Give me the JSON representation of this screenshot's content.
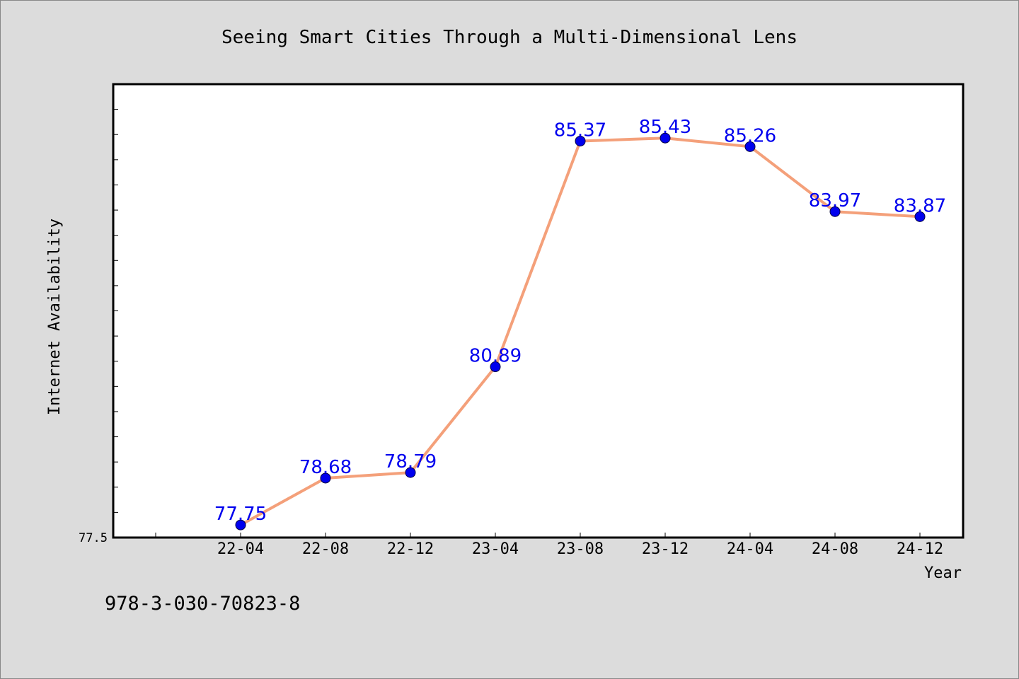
{
  "chart_data": {
    "type": "line",
    "title": "Seeing Smart Cities Through a Multi-Dimensional Lens",
    "xlabel": "Year",
    "ylabel": "Internet Availability",
    "categories": [
      "22-04",
      "22-08",
      "22-12",
      "23-04",
      "23-08",
      "23-12",
      "24-04",
      "24-08",
      "24-12"
    ],
    "series": [
      {
        "values": [
          77.75,
          78.68,
          78.79,
          80.89,
          85.37,
          85.43,
          85.26,
          83.97,
          83.87
        ]
      }
    ],
    "data_labels": [
      "77.75",
      "78.68",
      "78.79",
      "80.89",
      "85.37",
      "85.43",
      "85.26",
      "83.97",
      "83.87"
    ],
    "y_tick_labels": [
      "77.5"
    ],
    "ylim": [
      77.5,
      86.5
    ],
    "grid": false,
    "colors": {
      "line": "#f4a07a",
      "marker": "#0000ee",
      "label": "#0000ee",
      "background": "#dcdcdc",
      "plot_background": "#ffffff"
    }
  },
  "footer": {
    "isbn": "978-3-030-70823-8"
  }
}
